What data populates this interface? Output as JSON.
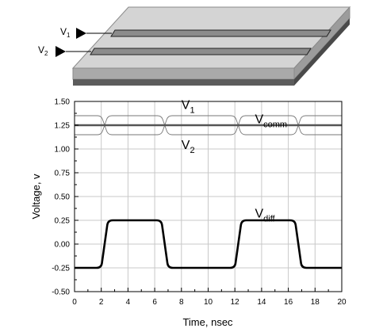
{
  "diagram": {
    "input_labels": [
      {
        "main": "V",
        "sub": "1"
      },
      {
        "main": "V",
        "sub": "2"
      }
    ]
  },
  "chart_data": {
    "type": "line",
    "title": "",
    "xlabel": "Time, nsec",
    "ylabel": "Voltage, v",
    "xlim": [
      0,
      20
    ],
    "ylim": [
      -0.5,
      1.5
    ],
    "xticks": [
      0,
      2,
      4,
      6,
      8,
      10,
      12,
      14,
      16,
      18,
      20
    ],
    "xtick_labels": [
      "0",
      "2",
      "4",
      "6",
      "8",
      "10",
      "12",
      "14",
      "16",
      "18",
      "20"
    ],
    "yticks": [
      -0.5,
      -0.25,
      0,
      0.25,
      0.5,
      0.75,
      1.0,
      1.25,
      1.5
    ],
    "ytick_labels": [
      "-0.50",
      "-0.25",
      "0.00",
      "0.25",
      "0.50",
      "0.75",
      "1.00",
      "1.25",
      "1.50"
    ],
    "grid": true,
    "series": [
      {
        "name": "V1",
        "label_main": "V",
        "label_sub": "1",
        "color": "#777777",
        "x": [
          0,
          2.0,
          2.5,
          6.5,
          7.0,
          12.0,
          12.5,
          16.5,
          17.0,
          20
        ],
        "y": [
          1.35,
          1.35,
          1.15,
          1.15,
          1.35,
          1.35,
          1.15,
          1.15,
          1.35,
          1.35
        ]
      },
      {
        "name": "V2",
        "label_main": "V",
        "label_sub": "2",
        "color": "#777777",
        "x": [
          0,
          2.0,
          2.5,
          6.5,
          7.0,
          12.0,
          12.5,
          16.5,
          17.0,
          20
        ],
        "y": [
          1.15,
          1.15,
          1.35,
          1.35,
          1.15,
          1.15,
          1.35,
          1.35,
          1.15,
          1.15
        ]
      },
      {
        "name": "Vcomm",
        "label_main": "V",
        "label_sub": "comm",
        "color": "#555555",
        "x": [
          0,
          20
        ],
        "y": [
          1.25,
          1.25
        ]
      },
      {
        "name": "Vdiff",
        "label_main": "V",
        "label_sub": "diff",
        "color": "#000000",
        "x": [
          0,
          2.0,
          2.5,
          6.5,
          7.0,
          12.0,
          12.5,
          16.5,
          17.0,
          20
        ],
        "y": [
          -0.25,
          -0.25,
          0.25,
          0.25,
          -0.25,
          -0.25,
          0.25,
          0.25,
          -0.25,
          -0.25
        ]
      }
    ]
  }
}
